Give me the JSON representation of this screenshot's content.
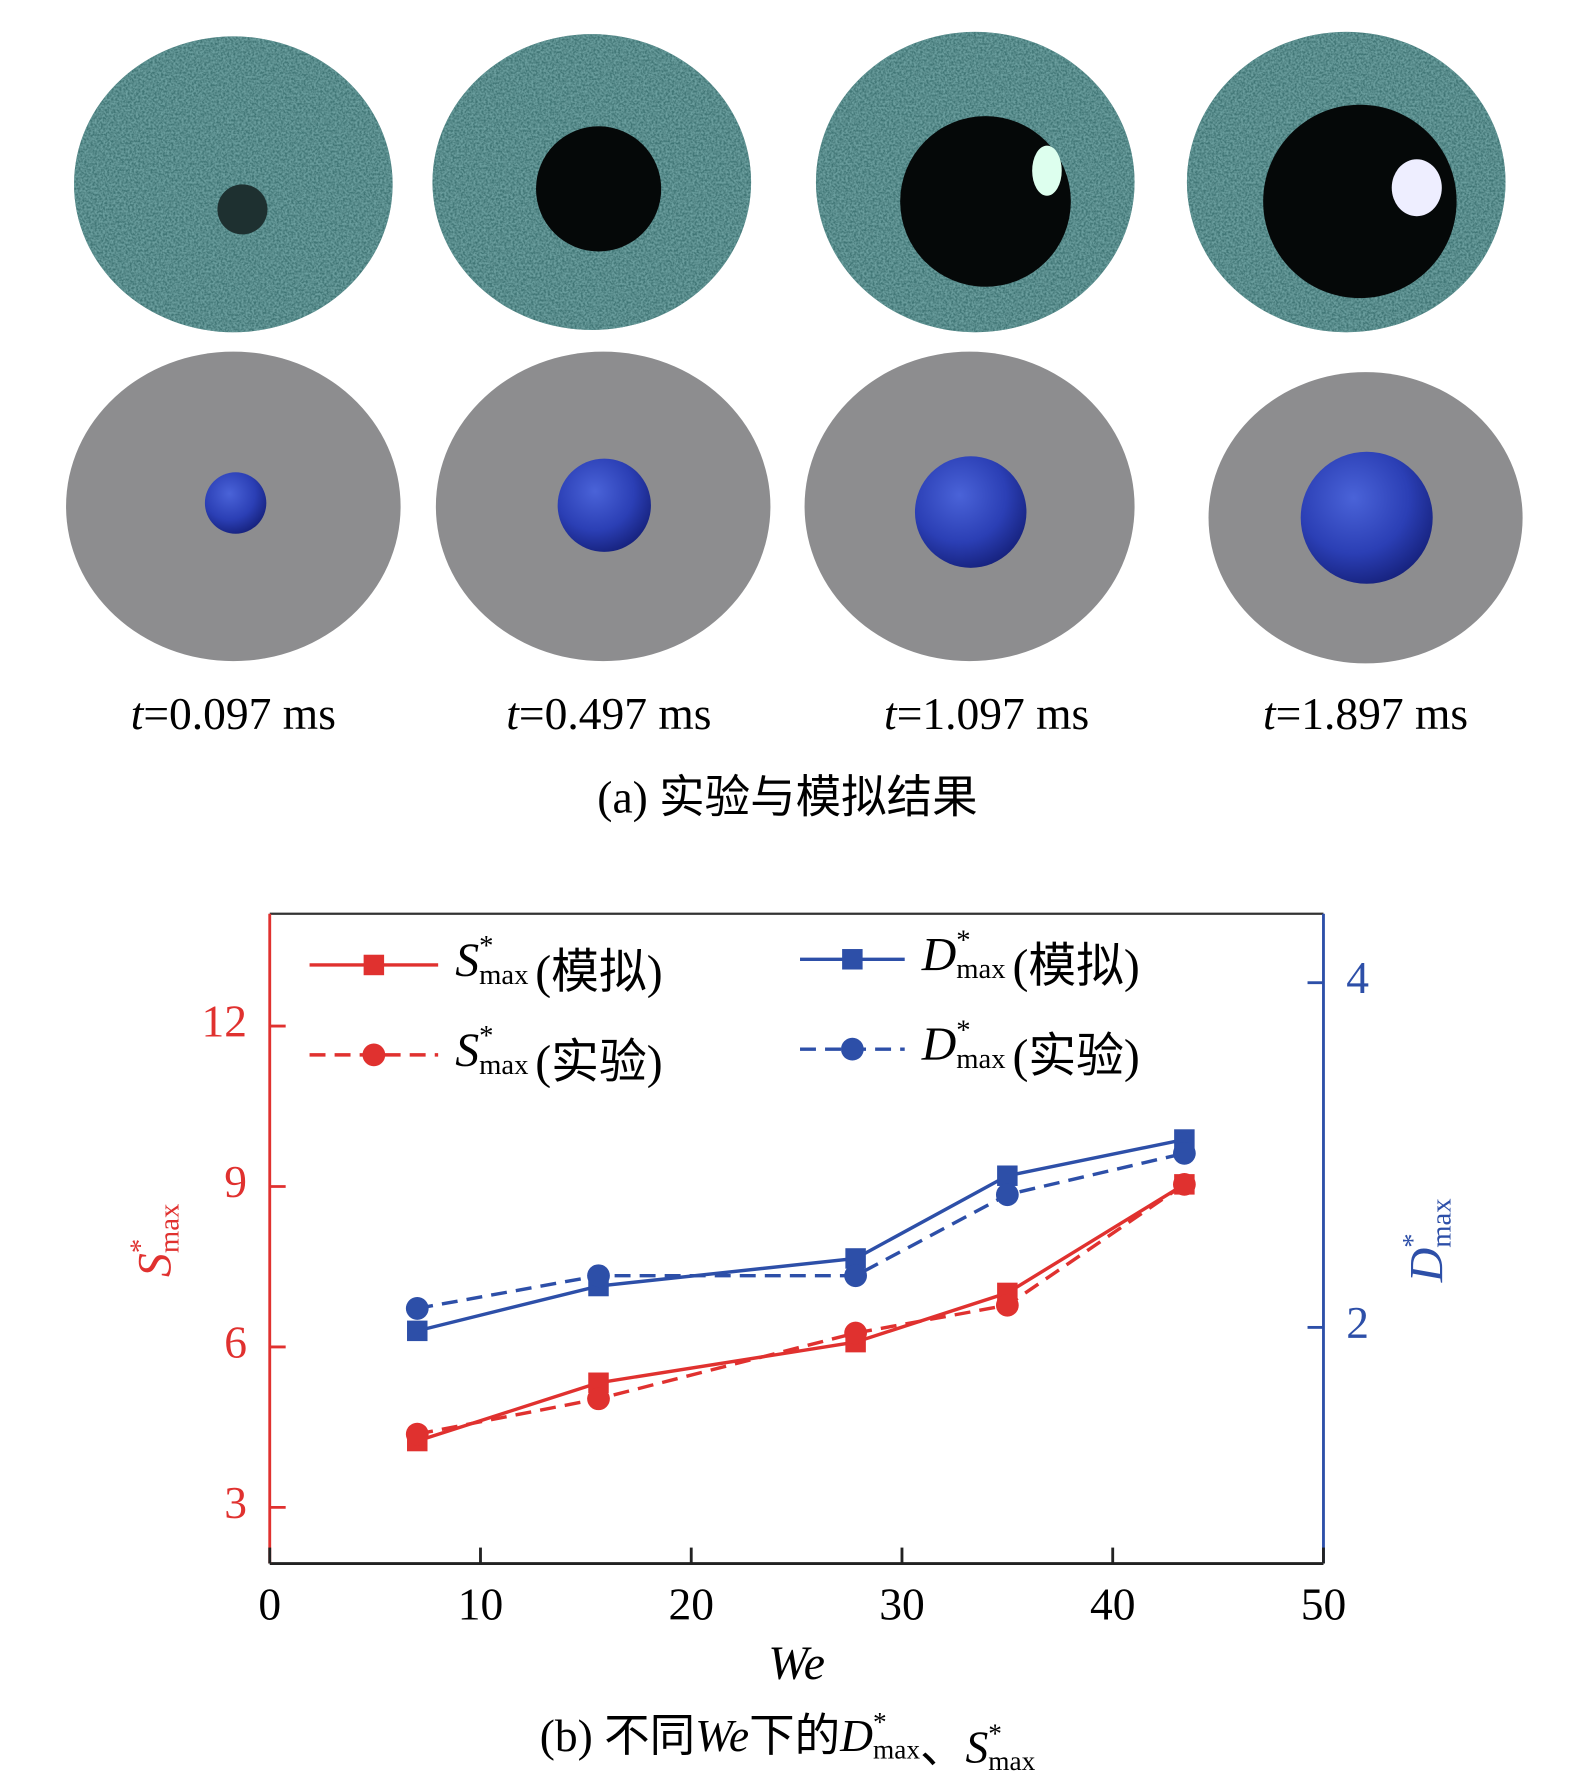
{
  "panel_a": {
    "times": [
      {
        "var": "t",
        "text": "=0.097 ms"
      },
      {
        "var": "t",
        "text": "=0.497 ms"
      },
      {
        "var": "t",
        "text": "=1.097 ms"
      },
      {
        "var": "t",
        "text": "=1.897 ms"
      }
    ],
    "caption": "(a) 实验与模拟结果"
  },
  "chart_data": {
    "type": "line",
    "x": [
      7,
      15.6,
      27.8,
      35,
      43.4
    ],
    "xlim": [
      0,
      50
    ],
    "xticks": [
      0,
      10,
      20,
      30,
      40,
      50
    ],
    "ylim": [
      1.95,
      14.1
    ],
    "yticks": [
      3,
      6,
      9,
      12
    ],
    "y2lim": [
      0.63,
      4.4
    ],
    "y2ticks": [
      2,
      4
    ],
    "xlabel": "We",
    "ylabel": {
      "base": "S",
      "sup": "*",
      "sub": "max"
    },
    "y2label": {
      "base": "D",
      "sup": "*",
      "sub": "max"
    },
    "left_color": "#e0312f",
    "right_color": "#2d4fa8",
    "series": [
      {
        "name": "(模拟)",
        "symbol": {
          "base": "S",
          "sup": "*",
          "sub": "max"
        },
        "color": "#e0312f",
        "linestyle": "solid",
        "marker": "square",
        "axis": "y",
        "values": [
          4.24,
          5.33,
          6.09,
          7.01,
          9.04
        ]
      },
      {
        "name": "(实验)",
        "symbol": {
          "base": "S",
          "sup": "*",
          "sub": "max"
        },
        "color": "#e0312f",
        "linestyle": "dashed",
        "marker": "circle",
        "axis": "y",
        "values": [
          4.37,
          5.03,
          6.26,
          6.78,
          9.04
        ]
      },
      {
        "name": "(模拟)",
        "symbol": {
          "base": "D",
          "sup": "*",
          "sub": "max"
        },
        "color": "#2d4fa8",
        "linestyle": "solid",
        "marker": "square",
        "axis": "y2",
        "values": [
          1.98,
          2.24,
          2.4,
          2.88,
          3.09
        ]
      },
      {
        "name": "(实验)",
        "symbol": {
          "base": "D",
          "sup": "*",
          "sub": "max"
        },
        "color": "#2d4fa8",
        "linestyle": "dashed",
        "marker": "circle",
        "axis": "y2",
        "values": [
          2.11,
          2.3,
          2.3,
          2.77,
          3.01
        ]
      }
    ],
    "caption": [
      {
        "text": "(b) 不同"
      },
      {
        "text": "We",
        "italic": true
      },
      {
        "text": "下的"
      },
      {
        "base": "D",
        "sup": "*",
        "sub": "max"
      },
      {
        "text": "、"
      },
      {
        "base": "S",
        "sup": "*",
        "sub": "max"
      }
    ]
  }
}
